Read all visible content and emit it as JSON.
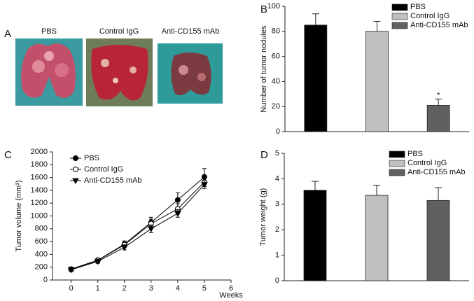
{
  "panel_a": {
    "label": "A",
    "images": [
      "PBS",
      "Control IgG",
      "Anti-CD155 mAb"
    ]
  },
  "chart_data": [
    {
      "type": "bar",
      "panel": "B",
      "ylabel": "Number of tumor nodules",
      "ylim": [
        0,
        100
      ],
      "yticks": [
        0,
        20,
        40,
        60,
        80,
        100
      ],
      "series": [
        {
          "name": "PBS",
          "color": "#000000",
          "values": [
            85
          ],
          "errors": [
            9
          ]
        },
        {
          "name": "Control IgG",
          "color": "#c0c0c0",
          "values": [
            80
          ],
          "errors": [
            8
          ]
        },
        {
          "name": "Anti-CD155 mAb",
          "color": "#606060",
          "values": [
            21
          ],
          "errors": [
            5
          ]
        }
      ],
      "annotations": [
        {
          "text": "*",
          "series": 2,
          "index": 0
        }
      ]
    },
    {
      "type": "line",
      "panel": "C",
      "ylabel": "Tumor volume (mm³)",
      "xlabel": "Weeks",
      "x": [
        0,
        1,
        2,
        3,
        4,
        5
      ],
      "xlim": [
        -0.7,
        6
      ],
      "xticks": [
        0,
        1,
        2,
        3,
        4,
        5,
        6
      ],
      "ylim": [
        0,
        2000
      ],
      "yticks": [
        0,
        200,
        400,
        600,
        800,
        1000,
        1200,
        1400,
        1600,
        1800,
        2000
      ],
      "series": [
        {
          "name": "PBS",
          "color": "#000000",
          "marker": "circle",
          "values": [
            170,
            310,
            560,
            900,
            1250,
            1610
          ],
          "errors": [
            30,
            30,
            50,
            80,
            110,
            130
          ]
        },
        {
          "name": "Control IgG",
          "color": "#000000",
          "marker": "open-circle",
          "values": [
            165,
            305,
            550,
            880,
            1110,
            1530
          ],
          "errors": [
            30,
            30,
            40,
            70,
            80,
            70
          ]
        },
        {
          "name": "Anti-CD155 mAb",
          "color": "#000000",
          "marker": "triangle-down",
          "values": [
            160,
            290,
            510,
            800,
            1040,
            1490
          ],
          "errors": [
            30,
            30,
            40,
            60,
            60,
            60
          ]
        }
      ]
    },
    {
      "type": "bar",
      "panel": "D",
      "ylabel": "Tumor weight (g)",
      "ylim": [
        0,
        5
      ],
      "yticks": [
        0,
        1,
        2,
        3,
        4,
        5
      ],
      "series": [
        {
          "name": "PBS",
          "color": "#000000",
          "values": [
            3.55
          ],
          "errors": [
            0.35
          ]
        },
        {
          "name": "Control IgG",
          "color": "#c0c0c0",
          "values": [
            3.35
          ],
          "errors": [
            0.4
          ]
        },
        {
          "name": "Anti-CD155 mAb",
          "color": "#606060",
          "values": [
            3.15
          ],
          "errors": [
            0.5
          ]
        }
      ]
    }
  ]
}
